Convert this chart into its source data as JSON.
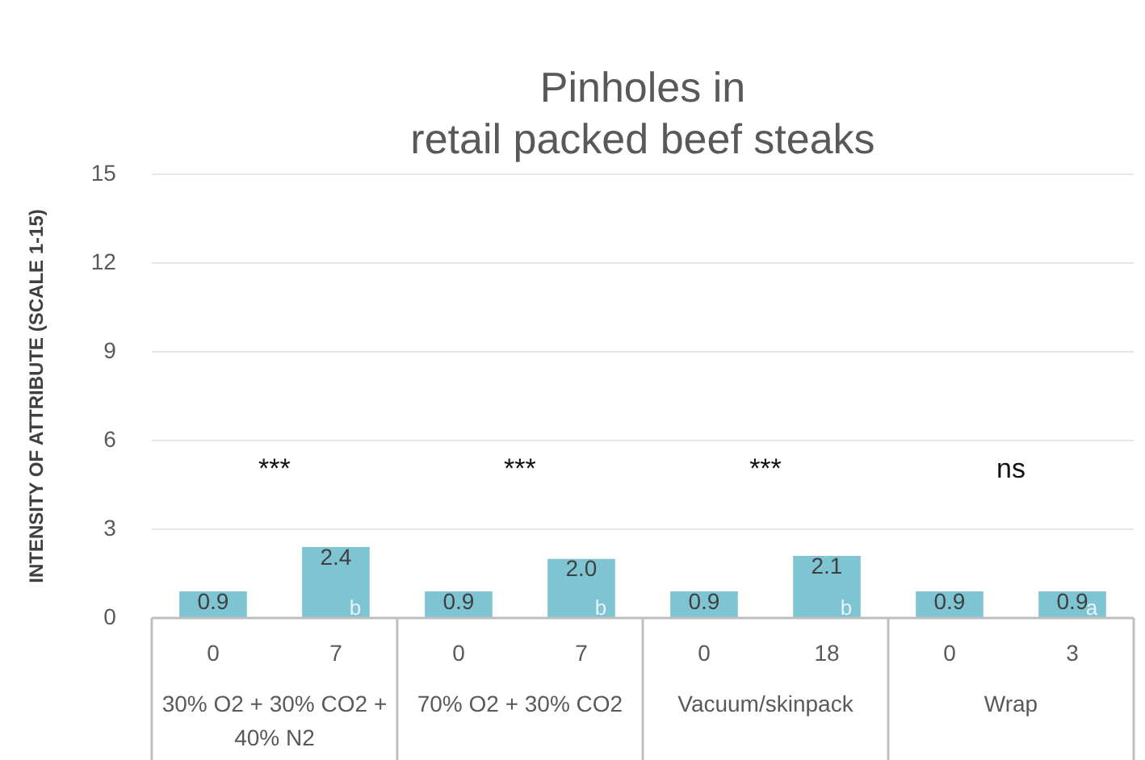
{
  "chart_data": {
    "type": "bar",
    "title": "Pinholes in\nretail packed beef steaks",
    "ylabel": "INTENSITY OF ATTRIBUTE (SCALE 1-15)",
    "categories": [
      "0",
      "7",
      "0",
      "7",
      "0",
      "18",
      "0",
      "3"
    ],
    "values": [
      0.9,
      2.4,
      0.9,
      2.0,
      0.9,
      2.1,
      0.9,
      0.9
    ],
    "color": "#7fc4d2",
    "value_labels": [
      "0.9",
      "2.4",
      "0.9",
      "2.0",
      "0.9",
      "2.1",
      "0.9",
      "0.9"
    ],
    "ylim": [
      0,
      15
    ],
    "yticks": [
      0,
      3,
      6,
      9,
      12,
      15
    ],
    "grid": "y",
    "annotations": [
      "30% O2 + 30% CO2 + 40% N2",
      "70% O2 + 30% CO2",
      "Vacuum/skinpack",
      "Wrap",
      "***",
      "***",
      "***",
      "ns",
      "b",
      "b",
      "b",
      "a"
    ]
  }
}
